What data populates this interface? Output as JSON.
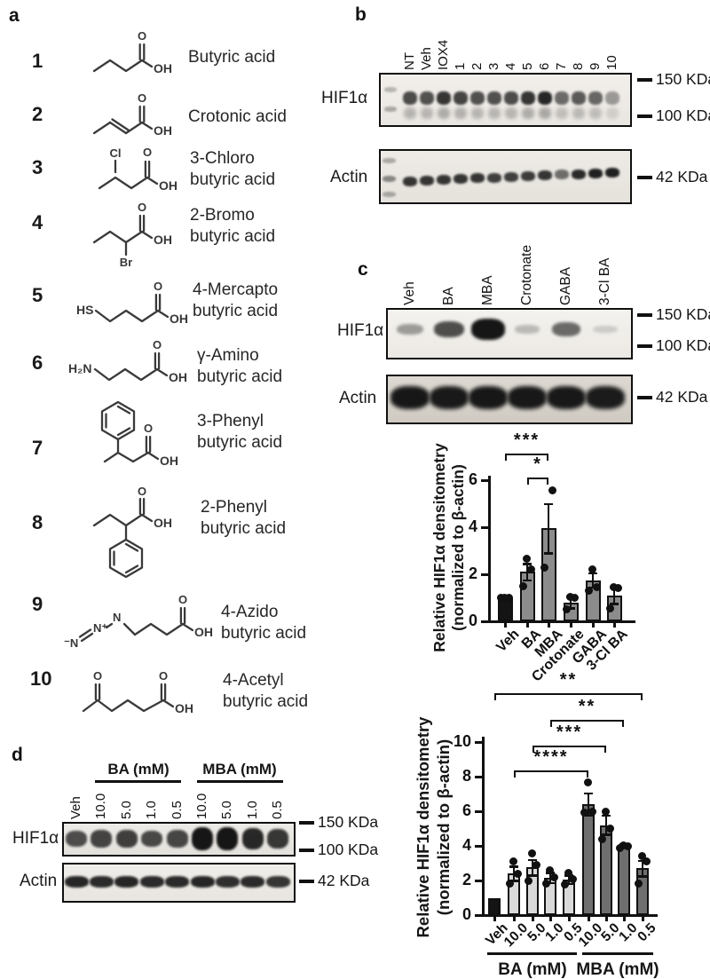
{
  "figure": {
    "panel_a": {
      "label": "a",
      "compounds": [
        {
          "num": "1",
          "name1": "Butyric  acid",
          "name2": "",
          "atoms": {
            "o": "O",
            "oh": "OH"
          }
        },
        {
          "num": "2",
          "name1": "Crotonic acid",
          "name2": "",
          "atoms": {
            "o": "O",
            "oh": "OH"
          }
        },
        {
          "num": "3",
          "name1": "3-Chloro",
          "name2": "butyric acid",
          "atoms": {
            "cl": "Cl",
            "o": "O",
            "oh": "OH"
          }
        },
        {
          "num": "4",
          "name1": "2-Bromo",
          "name2": "butyric acid",
          "atoms": {
            "o": "O",
            "oh": "OH",
            "br": "Br"
          }
        },
        {
          "num": "5",
          "name1": "4-Mercapto",
          "name2": "butyric acid",
          "atoms": {
            "hs": "HS",
            "o": "O",
            "oh": "OH"
          }
        },
        {
          "num": "6",
          "name1": "γ-Amino",
          "name2": "butyric acid",
          "atoms": {
            "h2n": "H₂N",
            "o": "O",
            "oh": "OH"
          }
        },
        {
          "num": "7",
          "name1": "3-Phenyl",
          "name2": "butyric acid",
          "atoms": {
            "o": "O",
            "oh": "OH"
          }
        },
        {
          "num": "8",
          "name1": "2-Phenyl",
          "name2": "butyric acid",
          "atoms": {
            "o": "O",
            "oh": "OH"
          }
        },
        {
          "num": "9",
          "name1": "4-Azido",
          "name2": "butyric acid",
          "atoms": {
            "n1": "⁻N",
            "n2": "N⁺",
            "n3": "N",
            "o": "O",
            "oh": "OH"
          }
        },
        {
          "num": "10",
          "name1": "4-Acetyl",
          "name2": "butyric acid",
          "atoms": {
            "o1": "O",
            "o2": "O",
            "oh": "OH"
          }
        }
      ]
    },
    "panel_b": {
      "label": "b",
      "lanes": [
        "NT",
        "Veh",
        "IOX4",
        "1",
        "2",
        "3",
        "4",
        "5",
        "6",
        "7",
        "8",
        "9",
        "10"
      ],
      "hif_label": "HIF1α",
      "actin_label": "Actin",
      "markers": {
        "m150": "150 KDa",
        "m100": "100 KDa",
        "m42": "42 KDa"
      },
      "hif_band_intensity": [
        0.75,
        0.72,
        0.85,
        0.78,
        0.72,
        0.72,
        0.74,
        0.85,
        0.92,
        0.6,
        0.68,
        0.62,
        0.38
      ],
      "actin_band_intensity": [
        0.85,
        0.85,
        0.85,
        0.85,
        0.85,
        0.8,
        0.8,
        0.82,
        0.85,
        0.58,
        0.9,
        0.95,
        0.95
      ]
    },
    "panel_c": {
      "label": "c",
      "lanes": [
        "Veh",
        "BA",
        "MBA",
        "Crotonate",
        "GABA",
        "3-Cl BA"
      ],
      "hif_label": "HIF1α",
      "actin_label": "Actin",
      "markers": {
        "m150": "150 KDa",
        "m100": "100 KDa",
        "m42": "42 KDa"
      },
      "hif_band_intensity": [
        0.32,
        0.68,
        0.97,
        0.18,
        0.55,
        0.1
      ],
      "actin_band_intensity": [
        0.97,
        0.9,
        0.97,
        0.95,
        0.95,
        0.85
      ]
    },
    "panel_d": {
      "label": "d",
      "group_labels": [
        "BA (mM)",
        "MBA (mM)"
      ],
      "lanes": [
        "Veh",
        "10.0",
        "5.0",
        "1.0",
        "0.5",
        "10.0",
        "5.0",
        "1.0",
        "0.5"
      ],
      "hif_label": "HIF1α",
      "actin_label": "Actin",
      "markers": {
        "m150": "150 KDa",
        "m100": "100 KDa",
        "m42": "42 KDa"
      },
      "hif_band_intensity": [
        0.55,
        0.62,
        0.66,
        0.58,
        0.6,
        1.0,
        1.0,
        0.85,
        0.72
      ],
      "actin_band_intensity": [
        0.92,
        0.9,
        0.92,
        0.9,
        0.9,
        0.92,
        0.88,
        0.9,
        0.85
      ]
    }
  },
  "chart_data": [
    {
      "type": "bar",
      "panel": "c",
      "categories": [
        "Veh",
        "BA",
        "MBA",
        "Crotonate",
        "GABA",
        "3-Cl BA"
      ],
      "values": [
        1.0,
        2.1,
        3.95,
        0.8,
        1.75,
        1.1
      ],
      "errors": [
        0,
        0.35,
        1.05,
        0.25,
        0.3,
        0.35
      ],
      "points": [
        [
          1.0,
          1.0,
          1.0
        ],
        [
          1.5,
          2.2,
          2.65
        ],
        [
          2.3,
          5.55
        ],
        [
          0.5,
          1.0,
          1.05
        ],
        [
          1.3,
          1.45,
          2.2
        ],
        [
          0.55,
          1.4,
          1.45
        ]
      ],
      "ylabel_line1": "Relative HIF1α densitometry",
      "ylabel_line2": "(normalized to β-actin)",
      "yticks": [
        0,
        2,
        4,
        6
      ],
      "ylim": [
        0,
        6
      ],
      "grid": false,
      "bar_colors": [
        "#141414",
        "#8c8c8c",
        "#8c8c8c",
        "#8c8c8c",
        "#8c8c8c",
        "#8c8c8c"
      ],
      "significance": [
        {
          "from": 0,
          "to": 2,
          "stars": "***"
        },
        {
          "from": 1,
          "to": 2,
          "stars": "*"
        }
      ]
    },
    {
      "type": "bar",
      "panel": "d",
      "categories": [
        "Veh",
        "10.0",
        "5.0",
        "1.0",
        "0.5",
        "10.0",
        "5.0",
        "1.0",
        "0.5"
      ],
      "group_labels": [
        "BA (mM)",
        "MBA (mM)"
      ],
      "values": [
        1.0,
        2.4,
        2.75,
        2.15,
        2.05,
        6.4,
        5.2,
        4.0,
        2.7
      ],
      "errors": [
        0,
        0.4,
        0.45,
        0.3,
        0.25,
        0.65,
        0.55,
        0.1,
        0.45
      ],
      "points": [
        [],
        [
          1.8,
          2.4,
          3.1
        ],
        [
          2.0,
          2.9,
          3.55
        ],
        [
          1.8,
          2.2,
          2.6
        ],
        [
          1.75,
          2.1,
          2.45
        ],
        [
          5.9,
          6.0,
          7.65
        ],
        [
          4.4,
          5.0,
          6.0
        ],
        [
          3.85,
          4.0,
          4.05
        ],
        [
          1.8,
          3.1,
          3.4
        ]
      ],
      "ylabel_line1": "Relative HIF1α densitometry",
      "ylabel_line2": "(normalized to β-actin)",
      "yticks": [
        0,
        2,
        4,
        6,
        8,
        10
      ],
      "ylim": [
        0,
        10
      ],
      "grid": false,
      "bar_colors": [
        "#141414",
        "#d9d9d9",
        "#d9d9d9",
        "#d9d9d9",
        "#d9d9d9",
        "#6f6f6f",
        "#6f6f6f",
        "#6f6f6f",
        "#6f6f6f"
      ],
      "significance": [
        {
          "from": 0,
          "to": 8,
          "stars": "**"
        },
        {
          "from": 3,
          "to": 7,
          "stars": "**"
        },
        {
          "from": 2,
          "to": 6,
          "stars": "***"
        },
        {
          "from": 1,
          "to": 5,
          "stars": "****"
        }
      ]
    }
  ]
}
